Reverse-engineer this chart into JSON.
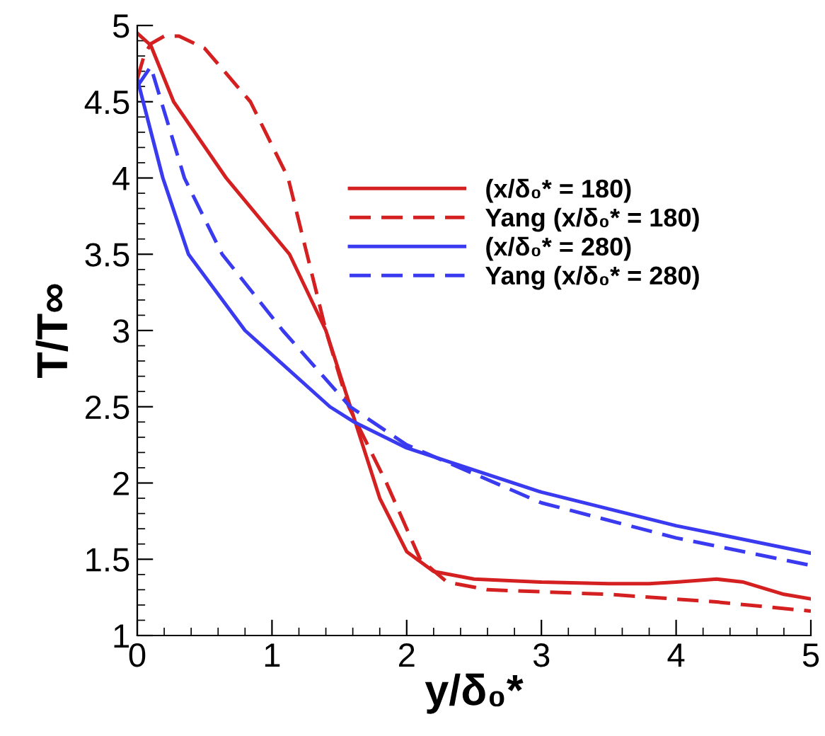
{
  "chart_data": {
    "type": "line",
    "xlabel": "y/δ₀*",
    "ylabel": "T/T∞",
    "xlim": [
      0,
      5
    ],
    "ylim": [
      1,
      5
    ],
    "xticks": [
      0,
      1,
      2,
      3,
      4,
      5
    ],
    "yticks": [
      1,
      1.5,
      2,
      2.5,
      3,
      3.5,
      4,
      4.5,
      5
    ],
    "legend": "top right",
    "grid": false,
    "series": [
      {
        "name": "(x/δ₀* = 180)",
        "color": "#d42020",
        "line_style": "solid",
        "x": [
          0,
          0.1,
          0.27,
          0.66,
          1.13,
          1.4,
          1.6,
          1.8,
          2.0,
          2.2,
          2.5,
          3.0,
          3.5,
          3.8,
          4.0,
          4.3,
          4.5,
          4.8,
          5.0
        ],
        "values": [
          4.95,
          4.87,
          4.5,
          4.0,
          3.5,
          3.0,
          2.45,
          1.9,
          1.55,
          1.42,
          1.37,
          1.35,
          1.34,
          1.34,
          1.35,
          1.37,
          1.35,
          1.27,
          1.24
        ]
      },
      {
        "name": "Yang (x/δ₀* = 180)",
        "color": "#d42020",
        "line_style": "dashed",
        "x": [
          0,
          0.05,
          0.1,
          0.2,
          0.31,
          0.5,
          0.84,
          1.12,
          1.26,
          1.4,
          1.57,
          1.85,
          2.1,
          2.3,
          2.6,
          3.5,
          4.3,
          5.0
        ],
        "values": [
          4.65,
          4.8,
          4.88,
          4.93,
          4.93,
          4.85,
          4.5,
          4.0,
          3.5,
          3.0,
          2.5,
          2.0,
          1.5,
          1.35,
          1.3,
          1.27,
          1.22,
          1.16
        ]
      },
      {
        "name": "(x/δ₀* = 280)",
        "color": "#3a3af0",
        "line_style": "solid",
        "x": [
          0,
          0.19,
          0.38,
          0.8,
          1.43,
          1.61,
          2.0,
          3.0,
          4.0,
          5.0
        ],
        "values": [
          4.65,
          4.0,
          3.5,
          3.0,
          2.5,
          2.4,
          2.23,
          1.94,
          1.72,
          1.54
        ]
      },
      {
        "name": "Yang (x/δ₀* = 280)",
        "color": "#3a3af0",
        "line_style": "dashed",
        "x": [
          0,
          0.1,
          0.35,
          0.63,
          1.08,
          1.58,
          2.0,
          3.0,
          4.0,
          5.0
        ],
        "values": [
          4.6,
          4.73,
          4.0,
          3.5,
          3.0,
          2.5,
          2.25,
          1.87,
          1.64,
          1.46
        ]
      }
    ]
  }
}
